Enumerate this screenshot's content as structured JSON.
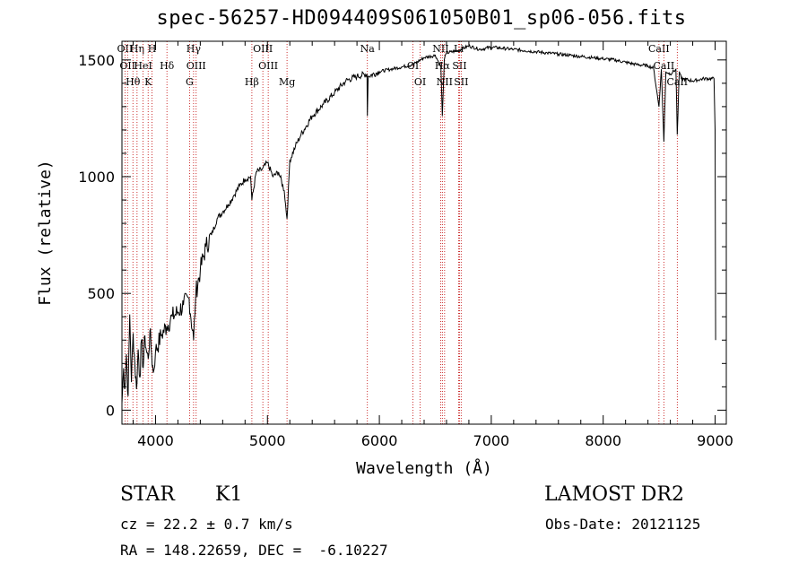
{
  "title": "spec-56257-HD094409S061050B01_sp06-056.fits",
  "info": {
    "class": "STAR",
    "subclass": "K1",
    "survey": "LAMOST DR2",
    "cz": "cz = 22.2 ± 0.7 km/s",
    "obs_date": "Obs-Date: 20121125",
    "coords": "RA = 148.22659, DEC =  -6.10227"
  },
  "chart_data": {
    "type": "line",
    "title": "spec-56257-HD094409S061050B01_sp06-056.fits",
    "xlabel": "Wavelength (Å)",
    "ylabel": "Flux (relative)",
    "xlim": [
      3700,
      9100
    ],
    "ylim": [
      -60,
      1580
    ],
    "xticks": [
      4000,
      5000,
      6000,
      7000,
      8000,
      9000
    ],
    "yticks": [
      0,
      500,
      1000,
      1500
    ],
    "grid": false,
    "series": [
      {
        "x": [
          3700,
          3715,
          3725,
          3740,
          3755,
          3770,
          3785,
          3800,
          3815,
          3830,
          3845,
          3860,
          3875,
          3890,
          3905,
          3920,
          3935,
          3950,
          3965,
          3980,
          4000,
          4050,
          4100,
          4150,
          4200,
          4250,
          4300,
          4340,
          4360,
          4400,
          4450,
          4500,
          4550,
          4600,
          4650,
          4700,
          4750,
          4800,
          4850,
          4861,
          4900,
          4950,
          5000,
          5050,
          5100,
          5150,
          5175,
          5200,
          5250,
          5300,
          5400,
          5500,
          5600,
          5700,
          5800,
          5890,
          5893,
          5900,
          6000,
          6100,
          6200,
          6300,
          6400,
          6500,
          6550,
          6563,
          6580,
          6600,
          6700,
          6800,
          6900,
          7000,
          7100,
          7200,
          7300,
          7400,
          7500,
          7600,
          7700,
          7800,
          7900,
          8000,
          8100,
          8200,
          8300,
          8400,
          8450,
          8498,
          8520,
          8542,
          8560,
          8600,
          8650,
          8662,
          8680,
          8700,
          8800,
          8900,
          8990,
          9000,
          9005
        ],
        "y": [
          30,
          180,
          90,
          240,
          60,
          410,
          120,
          330,
          200,
          90,
          260,
          140,
          300,
          180,
          320,
          250,
          220,
          340,
          240,
          160,
          250,
          320,
          360,
          400,
          420,
          450,
          480,
          300,
          500,
          600,
          700,
          750,
          820,
          850,
          880,
          920,
          960,
          990,
          1000,
          900,
          1020,
          1030,
          1060,
          1000,
          1020,
          940,
          820,
          1070,
          1130,
          1180,
          1260,
          1310,
          1360,
          1410,
          1430,
          1440,
          1260,
          1430,
          1450,
          1460,
          1470,
          1480,
          1510,
          1520,
          1470,
          1260,
          1500,
          1530,
          1540,
          1560,
          1545,
          1555,
          1550,
          1545,
          1540,
          1535,
          1530,
          1525,
          1520,
          1515,
          1510,
          1505,
          1500,
          1490,
          1480,
          1475,
          1465,
          1300,
          1460,
          1150,
          1450,
          1440,
          1460,
          1180,
          1450,
          1420,
          1410,
          1420,
          1420,
          1200,
          300
        ]
      }
    ],
    "lines": [
      {
        "wl": 3727,
        "name": "OII"
      },
      {
        "wl": 3750,
        "name": "OII"
      },
      {
        "wl": 3798,
        "name": "Hθ"
      },
      {
        "wl": 3835,
        "name": "Hη"
      },
      {
        "wl": 3889,
        "name": "HeI"
      },
      {
        "wl": 3934,
        "name": "K"
      },
      {
        "wl": 3969,
        "name": "H"
      },
      {
        "wl": 4102,
        "name": "Hδ"
      },
      {
        "wl": 4304,
        "name": "G"
      },
      {
        "wl": 4340,
        "name": "Hγ"
      },
      {
        "wl": 4363,
        "name": "OIII"
      },
      {
        "wl": 4861,
        "name": "Hβ"
      },
      {
        "wl": 4959,
        "name": "OIII"
      },
      {
        "wl": 5007,
        "name": "OIII"
      },
      {
        "wl": 5175,
        "name": "Mg"
      },
      {
        "wl": 5893,
        "name": "Na"
      },
      {
        "wl": 6300,
        "name": "OI"
      },
      {
        "wl": 6364,
        "name": "OI"
      },
      {
        "wl": 6548,
        "name": "NII"
      },
      {
        "wl": 6563,
        "name": "Hα"
      },
      {
        "wl": 6583,
        "name": "NII"
      },
      {
        "wl": 6708,
        "name": "Li"
      },
      {
        "wl": 6716,
        "name": "SII"
      },
      {
        "wl": 6731,
        "name": "SII"
      },
      {
        "wl": 8498,
        "name": "CaII"
      },
      {
        "wl": 8542,
        "name": "CaII"
      },
      {
        "wl": 8662,
        "name": "CaII"
      }
    ]
  }
}
